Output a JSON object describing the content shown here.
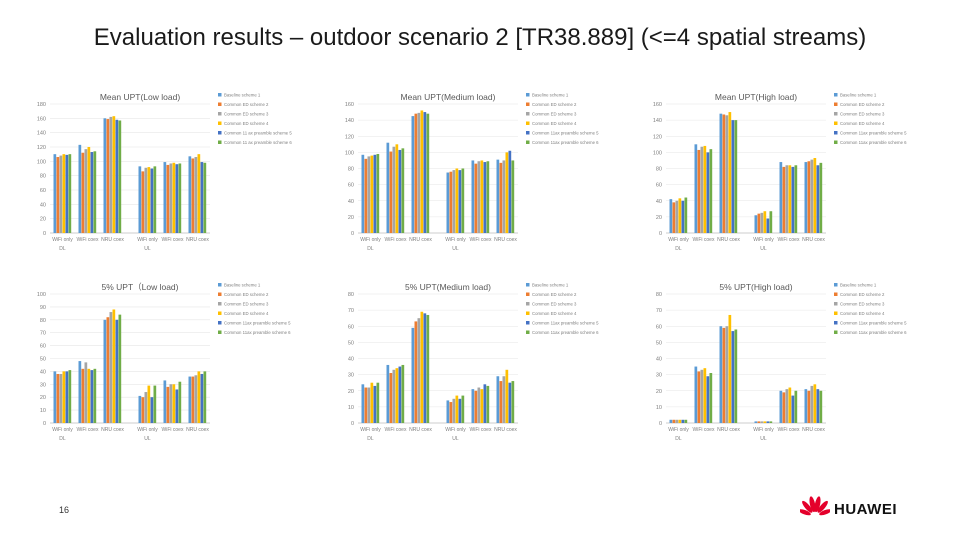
{
  "slide": {
    "title": "Evaluation results – outdoor scenario 2 [TR38.889] (<=4 spatial streams)",
    "page_number": "16",
    "brand": "HUAWEI"
  },
  "colors": [
    "#5b9bd5",
    "#ed7d31",
    "#a5a5a5",
    "#ffc000",
    "#4472c4",
    "#70ad47"
  ],
  "chart_data": [
    {
      "type": "bar",
      "title": "Mean UPT(Low load)",
      "categories": [
        "WiFi only",
        "WiFi coex",
        "NRU coex",
        "WiFi only",
        "WiFi coex",
        "NRU coex"
      ],
      "groups": [
        "DL",
        "UL"
      ],
      "legend": [
        "Baseline scheme 1",
        "Common ED scheme 2",
        "Common ED scheme 3",
        "Common ED scheme 4",
        "Common 11 ax preamble scheme 5",
        "Common 11 ax preamble scheme 6"
      ],
      "ylim": [
        0,
        180
      ],
      "yticks": [
        0,
        20,
        40,
        60,
        80,
        100,
        120,
        140,
        160,
        180
      ],
      "series": [
        {
          "values": [
            110,
            123,
            160,
            93,
            99,
            107
          ]
        },
        {
          "values": [
            106,
            112,
            159,
            86,
            95,
            104
          ]
        },
        {
          "values": [
            108,
            117,
            162,
            91,
            97,
            106
          ]
        },
        {
          "values": [
            110,
            120,
            163,
            92,
            98,
            110
          ]
        },
        {
          "values": [
            109,
            113,
            158,
            90,
            96,
            99
          ]
        },
        {
          "values": [
            110,
            114,
            157,
            93,
            97,
            98
          ]
        }
      ]
    },
    {
      "type": "bar",
      "title": "Mean UPT(Medium load)",
      "categories": [
        "WiFi only",
        "WiFi coex",
        "NRU coex",
        "WiFi only",
        "WiFi coex",
        "NRU coex"
      ],
      "groups": [
        "DL",
        "UL"
      ],
      "legend": [
        "Baseline scheme 1",
        "Common ED scheme 2",
        "Common ED scheme 3",
        "Common ED scheme 4",
        "Common 11ax preamble scheme 5",
        "Common 11ax preamble scheme 6"
      ],
      "ylim": [
        0,
        160
      ],
      "yticks": [
        0,
        20,
        40,
        60,
        80,
        100,
        120,
        140,
        160
      ],
      "series": [
        {
          "values": [
            97,
            112,
            145,
            75,
            90,
            91
          ]
        },
        {
          "values": [
            92,
            101,
            148,
            76,
            86,
            87
          ]
        },
        {
          "values": [
            95,
            107,
            149,
            78,
            89,
            90
          ]
        },
        {
          "values": [
            96,
            110,
            152,
            80,
            90,
            100
          ]
        },
        {
          "values": [
            97,
            103,
            150,
            78,
            88,
            102
          ]
        },
        {
          "values": [
            98,
            105,
            148,
            80,
            89,
            90
          ]
        }
      ]
    },
    {
      "type": "bar",
      "title": "Mean UPT(High load)",
      "categories": [
        "WiFi only",
        "WiFi coex",
        "NRU coex",
        "WiFi only",
        "WiFi coex",
        "NRU coex"
      ],
      "groups": [
        "DL",
        "UL"
      ],
      "legend": [
        "Baseline scheme 1",
        "Common ED scheme 2",
        "Common ED scheme 3",
        "Common ED scheme 4",
        "Common 11ax preamble scheme 5",
        "Common 11ax preamble scheme 6"
      ],
      "ylim": [
        0,
        160
      ],
      "yticks": [
        0,
        20,
        40,
        60,
        80,
        100,
        120,
        140,
        160
      ],
      "series": [
        {
          "values": [
            42,
            110,
            148,
            22,
            88,
            88
          ]
        },
        {
          "values": [
            38,
            103,
            147,
            24,
            82,
            89
          ]
        },
        {
          "values": [
            40,
            107,
            146,
            25,
            84,
            91
          ]
        },
        {
          "values": [
            43,
            108,
            150,
            27,
            84,
            93
          ]
        },
        {
          "values": [
            40,
            100,
            140,
            18,
            82,
            84
          ]
        },
        {
          "values": [
            44,
            104,
            140,
            27,
            84,
            87
          ]
        }
      ]
    },
    {
      "type": "bar",
      "title": "5% UPT（Low load)",
      "categories": [
        "WiFi only",
        "WiFi coex",
        "NRU coex",
        "WiFi only",
        "WiFi coex",
        "NRU coex"
      ],
      "groups": [
        "DL",
        "UL"
      ],
      "legend": [
        "Baseline scheme 1",
        "Common ED scheme 2",
        "Common ED scheme 3",
        "Common ED scheme 4",
        "Common 11ax preamble scheme 5",
        "Common 11ax preamble scheme 6"
      ],
      "ylim": [
        0,
        100
      ],
      "yticks": [
        0,
        10,
        20,
        30,
        40,
        50,
        60,
        70,
        80,
        90,
        100
      ],
      "series": [
        {
          "values": [
            40,
            48,
            80,
            21,
            33,
            36
          ]
        },
        {
          "values": [
            38,
            42,
            82,
            20,
            28,
            36
          ]
        },
        {
          "values": [
            38,
            47,
            86,
            24,
            30,
            37
          ]
        },
        {
          "values": [
            40,
            42,
            88,
            29,
            30,
            40
          ]
        },
        {
          "values": [
            40,
            41,
            80,
            20,
            26,
            38
          ]
        },
        {
          "values": [
            41,
            42,
            84,
            29,
            32,
            40
          ]
        }
      ]
    },
    {
      "type": "bar",
      "title": "5% UPT(Medium load)",
      "categories": [
        "WiFi only",
        "WiFi coex",
        "NRU coex",
        "WiFi only",
        "WiFi coex",
        "NRU coex"
      ],
      "groups": [
        "DL",
        "UL"
      ],
      "legend": [
        "Baseline scheme 1",
        "Common ED scheme 2",
        "Common ED scheme 3",
        "Common ED scheme 4",
        "Common 11ax preamble scheme 5",
        "Common 11ax preamble scheme 6"
      ],
      "ylim": [
        0,
        80
      ],
      "yticks": [
        0,
        10,
        20,
        30,
        40,
        50,
        60,
        70,
        80
      ],
      "series": [
        {
          "values": [
            24,
            36,
            59,
            14,
            21,
            29
          ]
        },
        {
          "values": [
            22,
            31,
            63,
            13,
            20,
            26
          ]
        },
        {
          "values": [
            22,
            33,
            65,
            15,
            22,
            29
          ]
        },
        {
          "values": [
            25,
            34,
            69,
            17,
            21,
            33
          ]
        },
        {
          "values": [
            23,
            35,
            68,
            15,
            24,
            25
          ]
        },
        {
          "values": [
            25,
            36,
            67,
            17,
            23,
            26
          ]
        }
      ]
    },
    {
      "type": "bar",
      "title": "5% UPT(High load)",
      "categories": [
        "WiFi only",
        "WiFi coex",
        "NRU coex",
        "WiFi only",
        "WiFi coex",
        "NRU coex"
      ],
      "groups": [
        "DL",
        "UL"
      ],
      "legend": [
        "Baseline scheme 1",
        "Common ED scheme 2",
        "Common ED scheme 3",
        "Common ED scheme 4",
        "Common 11ax preamble scheme 5",
        "Common 11ax preamble scheme 6"
      ],
      "ylim": [
        0,
        80
      ],
      "yticks": [
        0,
        10,
        20,
        30,
        40,
        50,
        60,
        70,
        80
      ],
      "series": [
        {
          "values": [
            2,
            35,
            60,
            1,
            20,
            21
          ]
        },
        {
          "values": [
            2,
            32,
            59,
            1,
            19,
            20
          ]
        },
        {
          "values": [
            2,
            33,
            60,
            1,
            21,
            23
          ]
        },
        {
          "values": [
            2,
            34,
            67,
            1,
            22,
            24
          ]
        },
        {
          "values": [
            2,
            29,
            57,
            1,
            17,
            21
          ]
        },
        {
          "values": [
            2,
            31,
            58,
            1,
            20,
            20
          ]
        }
      ]
    }
  ]
}
